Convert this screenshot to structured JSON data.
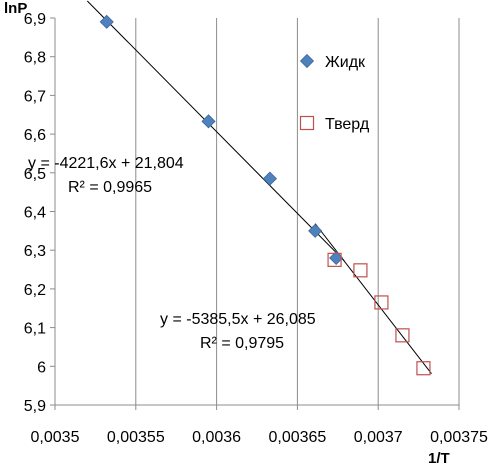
{
  "chart_data": {
    "type": "scatter",
    "xlabel": "1/T",
    "ylabel": "lnP",
    "xlim": [
      0.0035,
      0.00375
    ],
    "ylim": [
      5.9,
      6.9
    ],
    "xticks": [
      "0,0035",
      "0,00355",
      "0,0036",
      "0,00365",
      "0,0037",
      "0,00375"
    ],
    "yticks": [
      "5,9",
      "6",
      "6,1",
      "6,2",
      "6,3",
      "6,4",
      "6,5",
      "6,6",
      "6,7",
      "6,8",
      "6,9"
    ],
    "grid": "vertical",
    "legend_position": "right",
    "series": [
      {
        "name": "Жидк",
        "marker": "diamond",
        "color": "#4F81BD",
        "x": [
          0.003532,
          0.003595,
          0.003633,
          0.003661,
          0.003674
        ],
        "y": [
          6.89,
          6.633,
          6.485,
          6.35,
          6.28
        ]
      },
      {
        "name": "Тверд",
        "marker": "square-open",
        "color": "#C0504D",
        "x": [
          0.003673,
          0.003689,
          0.003702,
          0.003715,
          0.003728
        ],
        "y": [
          6.275,
          6.248,
          6.165,
          6.08,
          5.995
        ]
      }
    ],
    "trendlines": [
      {
        "series": "Жидк",
        "slope": -4221.6,
        "intercept": 21.804,
        "x_range": [
          0.003532,
          0.003674
        ]
      },
      {
        "series": "Тверд",
        "slope": -5385.5,
        "intercept": 26.085,
        "x_range": [
          0.003673,
          0.003728
        ]
      }
    ],
    "annotations": [
      {
        "id": "eq1",
        "text": "y = -4221,6x + 21,804"
      },
      {
        "id": "r1",
        "text": "R² = 0,9965"
      },
      {
        "id": "eq2",
        "text": "y = -5385,5x + 26,085"
      },
      {
        "id": "r2",
        "text": "R² = 0,9795"
      }
    ]
  }
}
